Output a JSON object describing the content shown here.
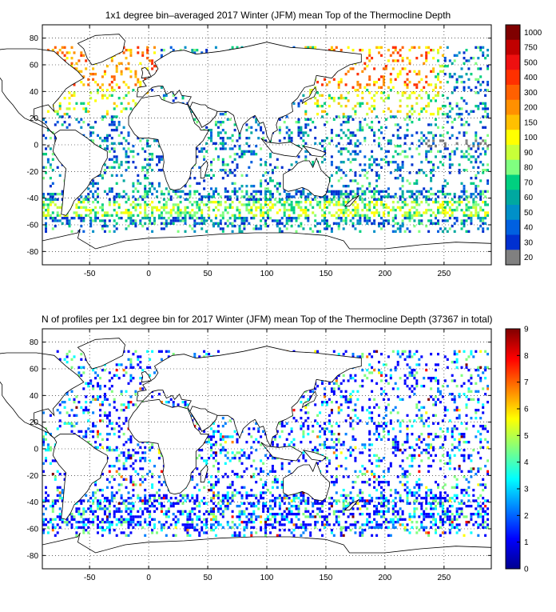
{
  "top_panel": {
    "title": "1x1 degree bin–averaged 2017 Winter (JFM) mean Top of the Thermocline Depth",
    "colorbar": {
      "labels": [
        "1000",
        "750",
        "500",
        "400",
        "300",
        "200",
        "150",
        "100",
        "90",
        "80",
        "70",
        "60",
        "50",
        "40",
        "30",
        "20"
      ],
      "colors": [
        "#7f0000",
        "#c00000",
        "#ee1010",
        "#ff3000",
        "#ff6000",
        "#ff9000",
        "#ffc000",
        "#ffff00",
        "#c8ff38",
        "#80ff80",
        "#00d080",
        "#00a8a0",
        "#0090c8",
        "#0060e0",
        "#0030d0",
        "#808080"
      ]
    }
  },
  "bottom_panel": {
    "title": "N of profiles per 1x1 degree bin for 2017 Winter (JFM) mean Top of the Thermocline Depth  (37367 in total)",
    "colorbar": {
      "labels": [
        "9",
        "8",
        "7",
        "6",
        "5",
        "4",
        "3",
        "2",
        "1",
        "0"
      ],
      "colors": [
        "#800000",
        "#ff0000",
        "#ff8000",
        "#ffff00",
        "#80ff80",
        "#00ffff",
        "#0080ff",
        "#0000ff",
        "#00008f"
      ]
    }
  },
  "chart_data": [
    {
      "type": "heatmap",
      "title": "1x1 degree bin–averaged 2017 Winter (JFM) mean Top of the Thermocline Depth",
      "x_ticks": [
        -50,
        0,
        50,
        100,
        150,
        200,
        250
      ],
      "y_ticks": [
        80,
        60,
        40,
        20,
        0,
        -20,
        -40,
        -60,
        -80
      ],
      "xlim": [
        -90,
        290
      ],
      "ylim": [
        -90,
        90
      ],
      "grid": true,
      "colorbar_labels": [
        "1000",
        "750",
        "500",
        "400",
        "300",
        "200",
        "150",
        "100",
        "90",
        "80",
        "70",
        "60",
        "50",
        "40",
        "30",
        "20"
      ]
    },
    {
      "type": "heatmap",
      "title": "N of profiles per 1x1 degree bin for 2017 Winter (JFM) mean Top of the Thermocline Depth  (37367 in total)",
      "x_ticks": [
        -50,
        0,
        50,
        100,
        150,
        200,
        250
      ],
      "y_ticks": [
        80,
        60,
        40,
        20,
        0,
        -20,
        -40,
        -60,
        -80
      ],
      "xlim": [
        -90,
        290
      ],
      "ylim": [
        -90,
        90
      ],
      "grid": true,
      "colorbar_ticks": [
        0,
        1,
        2,
        3,
        4,
        5,
        6,
        7,
        8,
        9
      ],
      "total_profiles": 37367
    }
  ]
}
